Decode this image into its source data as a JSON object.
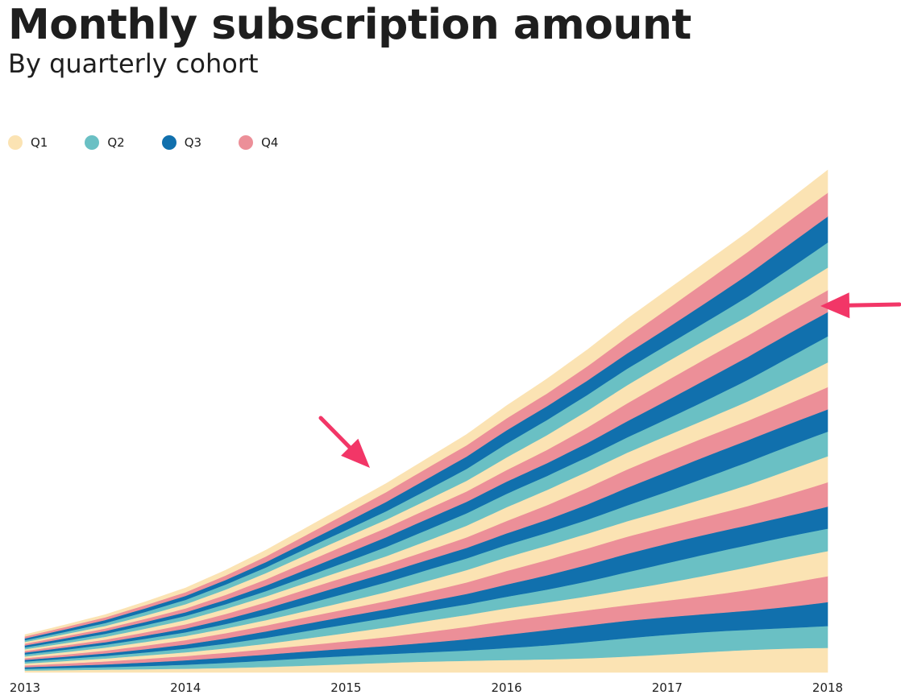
{
  "title": "Monthly subscription amount",
  "subtitle": "By quarterly cohort",
  "colors": {
    "Q1": "#fbe3b3",
    "Q2": "#6ac0c4",
    "Q3": "#1170ad",
    "Q4": "#ec8f98",
    "arrow": "#f23667"
  },
  "legend": [
    {
      "key": "Q1",
      "label": "Q1"
    },
    {
      "key": "Q2",
      "label": "Q2"
    },
    {
      "key": "Q3",
      "label": "Q3"
    },
    {
      "key": "Q4",
      "label": "Q4"
    }
  ],
  "chart_data": {
    "type": "area",
    "stacked": true,
    "x_ticks": [
      "2013",
      "2014",
      "2015",
      "2016",
      "2017",
      "2018"
    ],
    "x_range": [
      "2013-01",
      "2018-01"
    ],
    "cohort_count": 21,
    "cohort_colors": [
      "Q1",
      "Q2",
      "Q3",
      "Q4",
      "Q1",
      "Q2",
      "Q3",
      "Q4",
      "Q1",
      "Q2",
      "Q3",
      "Q4",
      "Q1",
      "Q2",
      "Q3",
      "Q4",
      "Q1",
      "Q2",
      "Q3",
      "Q4",
      "Q1"
    ],
    "stack_total": {
      "x": [
        "2013-01",
        "2013-04",
        "2013-07",
        "2013-10",
        "2014-01",
        "2014-04",
        "2014-07",
        "2014-10",
        "2015-01",
        "2015-04",
        "2015-07",
        "2015-10",
        "2016-01",
        "2016-04",
        "2016-07",
        "2016-10",
        "2017-01",
        "2017-04",
        "2017-07",
        "2017-10",
        "2018-01"
      ],
      "values": [
        8.5,
        10.7,
        13.0,
        15.9,
        19.0,
        23.0,
        27.5,
        32.5,
        37.5,
        42.5,
        48.0,
        53.5,
        60.0,
        66.0,
        72.5,
        79.5,
        86.0,
        92.5,
        99.0,
        106.0,
        113.0
      ]
    },
    "ylim": [
      0,
      125
    ],
    "grid": false,
    "legend_position": "top-left",
    "annotations": [
      {
        "type": "arrow",
        "points_to": "top edge of the stack near 2015"
      },
      {
        "type": "arrow",
        "points_to": "right edge of the stack at 2018"
      }
    ]
  }
}
